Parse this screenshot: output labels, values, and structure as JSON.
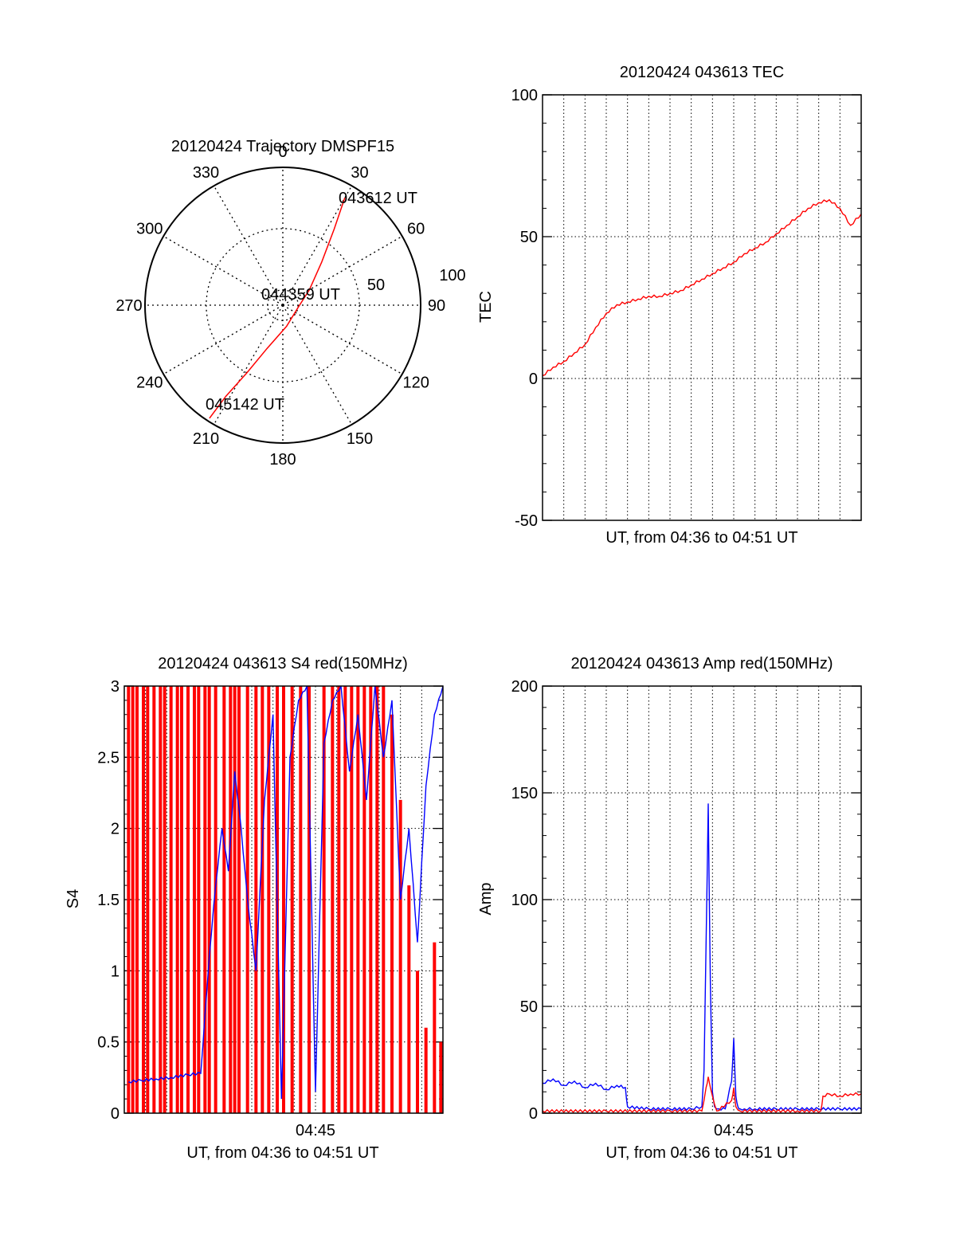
{
  "colors": {
    "red": "#ff0000",
    "blue": "#0000ff",
    "axis": "#000000",
    "grid": "#000000"
  },
  "chart_data": [
    {
      "id": "trajectory",
      "type": "polar",
      "title": "20120424 Trajectory DMSPF15",
      "angle_labels": [
        "0",
        "30",
        "60",
        "90",
        "120",
        "150",
        "180",
        "210",
        "240",
        "270",
        "300",
        "330"
      ],
      "radial_ticks": [
        50,
        100
      ],
      "rmax": 90,
      "grid": true,
      "track": {
        "color": "red",
        "start_label": "043612 UT",
        "mid_label": "044359 UT",
        "end_label": "045142 UT",
        "points": [
          {
            "az": 30,
            "zen": 81
          },
          {
            "az": 34,
            "zen": 60
          },
          {
            "az": 42,
            "zen": 38
          },
          {
            "az": 60,
            "zen": 20
          },
          {
            "az": 100,
            "zen": 10
          },
          {
            "az": 170,
            "zen": 14
          },
          {
            "az": 200,
            "zen": 30
          },
          {
            "az": 208,
            "zen": 50
          },
          {
            "az": 212,
            "zen": 70
          },
          {
            "az": 213,
            "zen": 88
          }
        ]
      }
    },
    {
      "id": "tec",
      "type": "line",
      "title": "20120424 043613 TEC",
      "ylabel": "TEC",
      "xlabel": "UT, from 04:36 to 04:51 UT",
      "ylim": [
        -50,
        100
      ],
      "yticks": [
        -50,
        0,
        50,
        100
      ],
      "xlim_min": [
        0,
        15
      ],
      "xtick_labels": [],
      "grid": true,
      "series": [
        {
          "color": "red",
          "x": [
            0,
            0.5,
            1,
            1.5,
            2,
            2.5,
            3,
            3.5,
            4,
            4.5,
            5,
            5.5,
            6,
            6.5,
            7,
            7.5,
            8,
            8.5,
            9,
            9.5,
            10,
            10.5,
            11,
            11.5,
            12,
            12.5,
            13,
            13.5,
            14,
            14.5,
            15
          ],
          "values": [
            1,
            4,
            6,
            9,
            12,
            18,
            23,
            26,
            27,
            28,
            29,
            29,
            30,
            31,
            33,
            35,
            37,
            39,
            41,
            44,
            46,
            48,
            51,
            54,
            57,
            60,
            62,
            63,
            60,
            54,
            58
          ]
        }
      ]
    },
    {
      "id": "s4",
      "type": "line",
      "title": "20120424 043613 S4 red(150MHz)",
      "ylabel": "S4",
      "xlabel": "UT, from 04:36 to 04:51 UT",
      "ylim": [
        0,
        3
      ],
      "yticks": [
        "0",
        "0.5",
        "1",
        "1.5",
        "2",
        "2.5",
        "3"
      ],
      "xlim_min": [
        0,
        15
      ],
      "xtick_labels": [
        {
          "x": 9,
          "label": "04:45"
        }
      ],
      "grid": true,
      "series": [
        {
          "color": "red",
          "style": "spikes",
          "x": [
            0.2,
            0.4,
            0.6,
            0.9,
            1.1,
            1.4,
            1.7,
            1.9,
            2.2,
            2.5,
            2.7,
            3.0,
            3.3,
            3.5,
            3.8,
            4.0,
            4.3,
            4.7,
            5.0,
            5.2,
            5.4,
            5.8,
            6.2,
            6.5,
            6.8,
            7.2,
            7.5,
            7.9,
            8.3,
            8.7,
            9.4,
            9.8,
            10.1,
            10.4,
            10.7,
            11.0,
            11.3,
            11.6,
            11.9,
            12.2,
            12.6,
            13.0,
            13.4,
            13.8,
            14.2,
            14.6,
            14.9
          ],
          "values": [
            3,
            3,
            3,
            3,
            3,
            3,
            3,
            3,
            3,
            3,
            3,
            3,
            3,
            3,
            3,
            3,
            3,
            3,
            3,
            3,
            3,
            3,
            3,
            3,
            3,
            3,
            3,
            3,
            3,
            3,
            3,
            3,
            3,
            3,
            3,
            3,
            3,
            3,
            3,
            3,
            2.8,
            2.2,
            1.6,
            1.0,
            0.6,
            1.2,
            0.5
          ]
        },
        {
          "color": "blue",
          "style": "line",
          "x": [
            0.2,
            0.8,
            1.5,
            2.2,
            3.0,
            3.6,
            4.0,
            4.3,
            4.6,
            4.9,
            5.2,
            5.5,
            5.8,
            6.2,
            6.6,
            7.0,
            7.4,
            7.8,
            8.2,
            8.6,
            9.0,
            9.4,
            9.8,
            10.2,
            10.6,
            11.0,
            11.4,
            11.8,
            12.2,
            12.6,
            13.0,
            13.4,
            13.8,
            14.2,
            14.6,
            15.0
          ],
          "values": [
            0.22,
            0.23,
            0.24,
            0.25,
            0.27,
            0.28,
            1.1,
            1.6,
            2.0,
            1.7,
            2.4,
            2.0,
            1.5,
            1.0,
            2.2,
            2.8,
            0.1,
            2.5,
            2.9,
            3.0,
            0.15,
            2.6,
            2.9,
            3.0,
            2.4,
            2.8,
            2.2,
            3.0,
            2.5,
            2.9,
            1.5,
            2.0,
            1.2,
            2.3,
            2.8,
            3.0
          ]
        }
      ]
    },
    {
      "id": "amp",
      "type": "line",
      "title": "20120424 043613 Amp red(150MHz)",
      "ylabel": "Amp",
      "xlabel": "UT, from 04:36 to 04:51 UT",
      "ylim": [
        0,
        200
      ],
      "yticks": [
        0,
        50,
        100,
        150,
        200
      ],
      "xlim_min": [
        0,
        15
      ],
      "xtick_labels": [
        {
          "x": 9,
          "label": "04:45"
        }
      ],
      "grid": true,
      "series": [
        {
          "color": "blue",
          "style": "line",
          "x": [
            0,
            0.5,
            1,
            1.5,
            2,
            2.5,
            3,
            3.5,
            3.9,
            4.0,
            5,
            6,
            7,
            7.5,
            7.6,
            7.7,
            7.8,
            7.9,
            8.0,
            8.1,
            8.3,
            8.6,
            8.9,
            9.0,
            9.1,
            9.2,
            9.3,
            9.5,
            10,
            11,
            12,
            13,
            14,
            15
          ],
          "values": [
            14,
            16,
            13,
            15,
            12,
            14,
            11,
            13,
            12,
            3,
            2,
            2,
            2,
            3,
            20,
            80,
            145,
            60,
            10,
            3,
            2,
            2,
            15,
            35,
            8,
            3,
            2,
            2,
            2,
            2,
            2,
            2,
            2,
            2
          ]
        },
        {
          "color": "red",
          "style": "line",
          "x": [
            0,
            3,
            6,
            7.5,
            7.7,
            7.8,
            8.0,
            8.2,
            8.9,
            9.0,
            9.1,
            9.3,
            12,
            13.1,
            13.2,
            13.5,
            14,
            14.5,
            15
          ],
          "values": [
            1,
            1,
            1,
            1,
            12,
            17,
            8,
            1,
            6,
            12,
            3,
            1,
            1,
            1,
            8,
            9,
            8,
            9,
            9
          ]
        }
      ]
    }
  ]
}
